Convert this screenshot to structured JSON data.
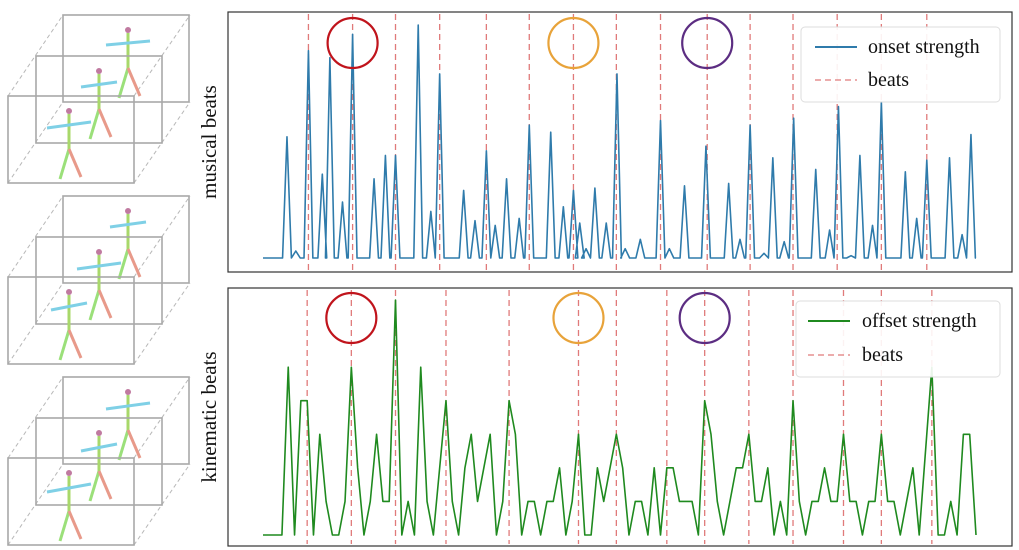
{
  "colors": {
    "onset": "#2f7bab",
    "offset": "#1f8a1f",
    "beats": "#e07a7a",
    "highlight_red": "#c0141c",
    "highlight_orange": "#e8a33a",
    "highlight_purple": "#5c2d82"
  },
  "poses": {
    "frame_colors": [
      "#b02a2a",
      "#c99a4e",
      "#6b4a86"
    ]
  },
  "chart_data": [
    {
      "type": "line",
      "ylabel": "musical beats",
      "xlim": [
        0,
        113
      ],
      "ylim": [
        0,
        1
      ],
      "grid": false,
      "legend_placement": "top-right",
      "legend": [
        "onset strength",
        "beats"
      ],
      "series": [
        {
          "name": "onset strength",
          "peaks_x": [
            3.8,
            5.2,
            7.2,
            9.4,
            10.6,
            12.6,
            14.2,
            17.6,
            19.4,
            21.0,
            24.6,
            26.6,
            28.0,
            31.8,
            33.6,
            35.4,
            36.8,
            38.6,
            40.6,
            42.2,
            45.6,
            47.6,
            49.2,
            50.2,
            51.2,
            52.6,
            54.4,
            56.1,
            57.4,
            59.8,
            63.0,
            64.4,
            66.8,
            70.2,
            73.8,
            75.6,
            77.2,
            79.4,
            80.8,
            82.6,
            84.1,
            87.6,
            89.8,
            91.2,
            93.2,
            94.6,
            96.6,
            98.0,
            101.8,
            103.6,
            105.2,
            108.8,
            110.8,
            112.2
          ],
          "peaks_y": [
            0.52,
            0.03,
            0.89,
            0.36,
            0.86,
            0.24,
            0.96,
            0.34,
            0.44,
            0.44,
            1.0,
            0.2,
            0.79,
            0.29,
            0.16,
            0.46,
            0.14,
            0.34,
            0.17,
            0.57,
            0.54,
            0.22,
            0.29,
            0.15,
            0.04,
            0.3,
            0.15,
            0.79,
            0.04,
            0.08,
            0.59,
            0.04,
            0.31,
            0.48,
            0.32,
            0.08,
            0.57,
            0.02,
            0.43,
            0.07,
            0.6,
            0.38,
            0.12,
            0.65,
            0.01,
            0.44,
            0.14,
            0.67,
            0.37,
            0.17,
            0.42,
            0.43,
            0.1,
            0.53
          ]
        }
      ],
      "beats": [
        7.2,
        14.2,
        21.0,
        28.0,
        35.4,
        42.2,
        49.2,
        56.0,
        63.0,
        70.4,
        77.2,
        84.0,
        91.0,
        98.0,
        105.2
      ],
      "highlighted_beats": [
        {
          "x": 14.2,
          "color": "#c0141c"
        },
        {
          "x": 49.2,
          "color": "#e8a33a"
        },
        {
          "x": 70.4,
          "color": "#5c2d82"
        }
      ]
    },
    {
      "type": "line",
      "ylabel": "kinematic beats",
      "xlim": [
        0,
        113
      ],
      "ylim": [
        0,
        7
      ],
      "grid": false,
      "legend_placement": "top-right",
      "legend": [
        "offset strength",
        "beats"
      ],
      "series": [
        {
          "name": "offset strength",
          "x": [
            0,
            3,
            4,
            5,
            6,
            7,
            8,
            9,
            10,
            11,
            12,
            13,
            14,
            15,
            16,
            17,
            18,
            19,
            20,
            21,
            22,
            23,
            24,
            25,
            26,
            27,
            29,
            30,
            31,
            32,
            33,
            34,
            36,
            37,
            38,
            39,
            40,
            41,
            42,
            43,
            44,
            45,
            46,
            47,
            48,
            49,
            50,
            51,
            52,
            53,
            54,
            56,
            57,
            58,
            59,
            60,
            61,
            62,
            63,
            64,
            65,
            66,
            68,
            69,
            70,
            71,
            72,
            73,
            75,
            76,
            77,
            78,
            79,
            80,
            81,
            82,
            83,
            84,
            85,
            86,
            87,
            88,
            89,
            90,
            91,
            92,
            93,
            94,
            95,
            96,
            97,
            98,
            99,
            100,
            101,
            102,
            103,
            104,
            106,
            107,
            108,
            109,
            110,
            111,
            112,
            113
          ],
          "y": [
            0,
            0,
            5,
            0,
            4,
            4,
            0,
            3,
            1,
            0,
            0,
            1,
            5,
            2,
            0,
            1,
            3,
            1,
            1,
            7,
            0,
            1,
            0,
            5,
            1,
            0,
            4,
            1,
            0,
            2,
            3,
            1,
            3,
            0,
            1,
            4,
            3,
            0,
            1,
            1,
            0,
            1,
            1,
            2,
            0,
            1,
            3,
            0,
            0,
            2,
            1,
            3,
            2,
            0,
            1,
            1,
            0,
            2,
            0,
            2,
            2,
            1,
            1,
            0,
            4,
            3,
            1,
            0,
            2,
            2,
            3,
            1,
            1,
            2,
            0,
            1,
            0,
            4,
            1,
            0,
            1,
            1,
            2,
            1,
            1,
            3,
            1,
            1,
            0,
            1,
            1,
            3,
            1,
            1,
            0,
            1,
            2,
            0,
            5,
            0,
            0,
            1,
            0,
            3,
            3,
            0
          ]
        }
      ],
      "beats": [
        7,
        14,
        21,
        29,
        39,
        50,
        56,
        64,
        70,
        77,
        84,
        92,
        98,
        106
      ],
      "highlighted_beats": [
        {
          "x": 14,
          "color": "#c0141c"
        },
        {
          "x": 50,
          "color": "#e8a33a"
        },
        {
          "x": 70,
          "color": "#5c2d82"
        }
      ]
    }
  ]
}
